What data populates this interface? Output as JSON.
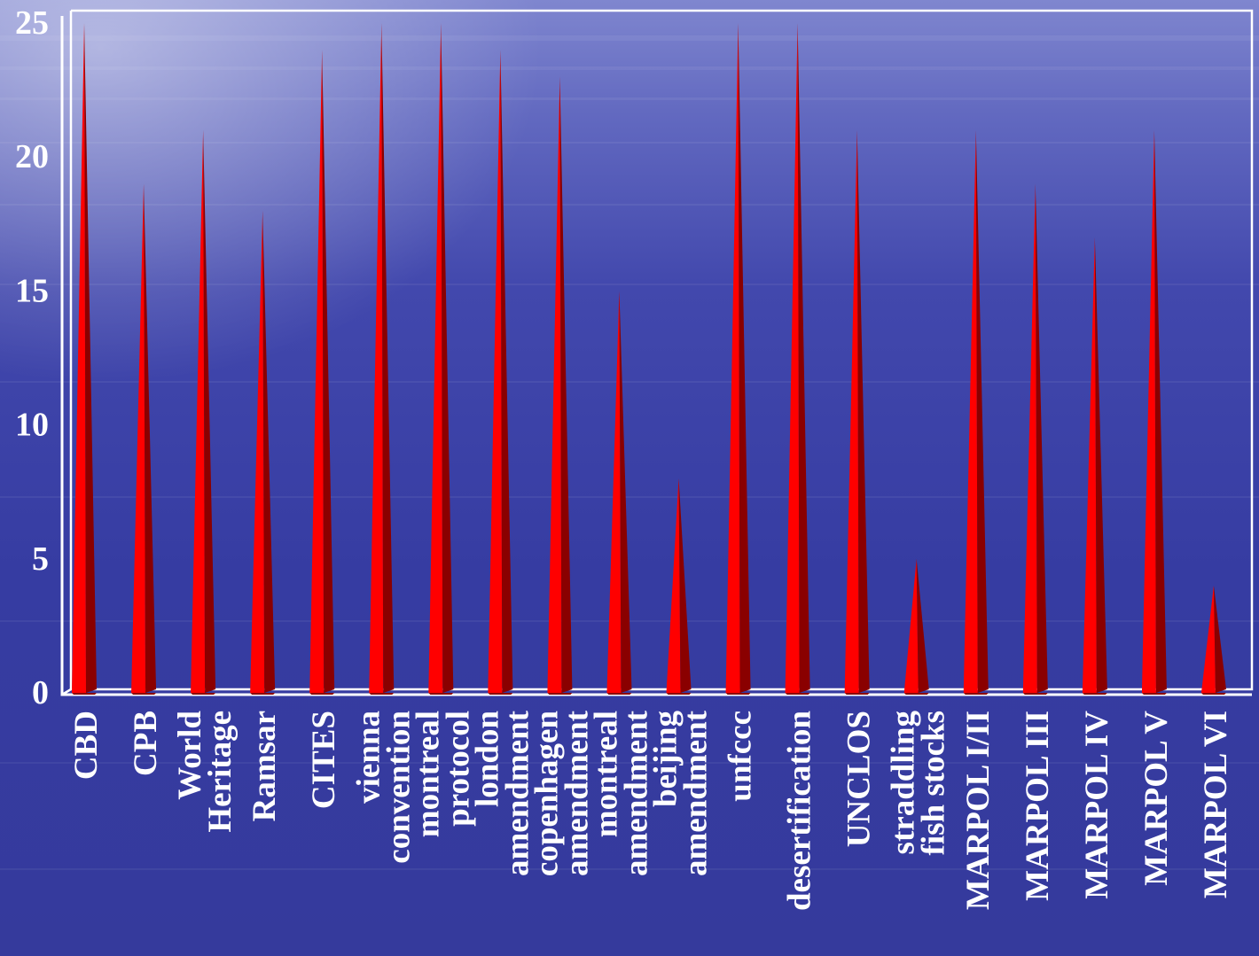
{
  "chart_data": {
    "type": "bar",
    "bar_shape": "cone",
    "categories": [
      [
        "CBD"
      ],
      [
        "CPB"
      ],
      [
        "World",
        "Heritage"
      ],
      [
        "Ramsar"
      ],
      [
        "CITES"
      ],
      [
        "vienna",
        "convention"
      ],
      [
        "montreal",
        "protocol"
      ],
      [
        "london",
        "amendment"
      ],
      [
        "copenhagen",
        "amendment"
      ],
      [
        "montreal",
        "amendment"
      ],
      [
        "beijing",
        "amendment"
      ],
      [
        "unfccc"
      ],
      [
        "desertification"
      ],
      [
        "UNCLOS"
      ],
      [
        "straddling",
        "fish stocks"
      ],
      [
        "MARPOL I/II"
      ],
      [
        "MARPOL III"
      ],
      [
        "MARPOL IV"
      ],
      [
        "MARPOL V"
      ],
      [
        "MARPOL VI"
      ]
    ],
    "values": [
      25,
      19,
      21,
      18,
      24,
      25,
      25,
      24,
      23,
      15,
      8,
      25,
      25,
      21,
      5,
      21,
      19,
      17,
      21,
      4
    ],
    "ylim": [
      0,
      25
    ],
    "yticks": [
      "0",
      "5",
      "10",
      "15",
      "20",
      "25"
    ],
    "title": "",
    "xlabel": "",
    "ylabel": "",
    "bar_color": "#ff0000",
    "bar_shade_color": "#8a0000",
    "axis_color": "#ffffff",
    "text_color": "#ffffff",
    "background_color": "#3a3fa8"
  }
}
